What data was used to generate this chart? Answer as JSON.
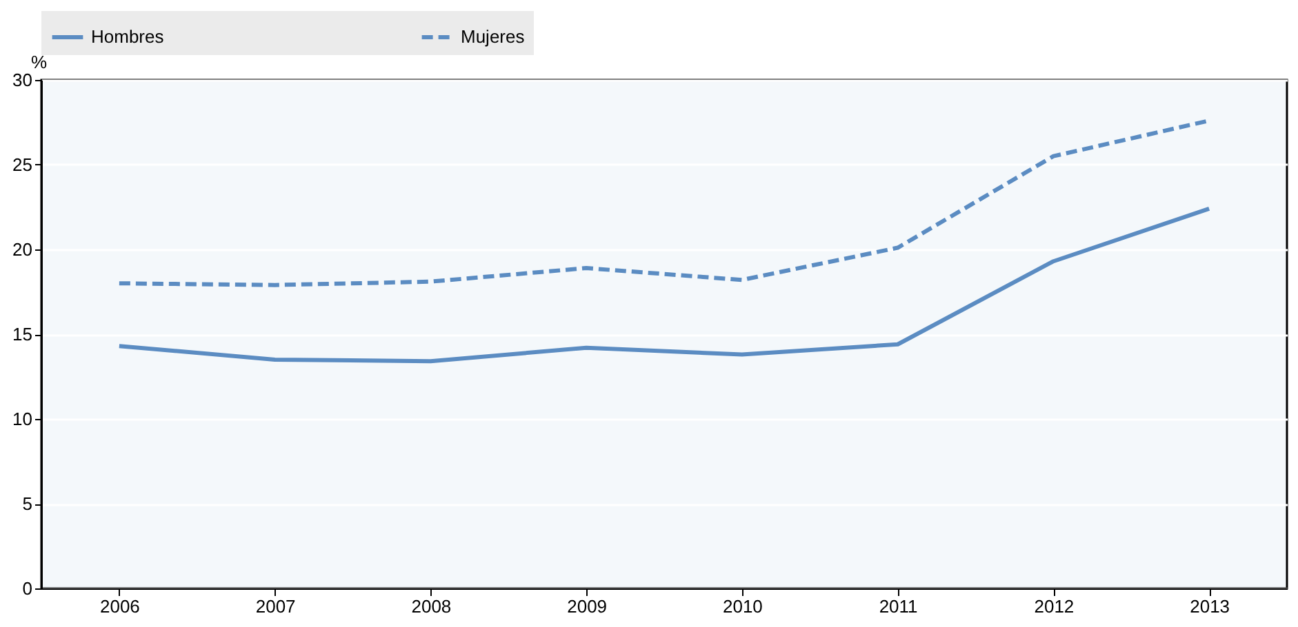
{
  "chart_data": {
    "type": "line",
    "ylabel": "%",
    "categories": [
      "2006",
      "2007",
      "2008",
      "2009",
      "2010",
      "2011",
      "2012",
      "2013"
    ],
    "series": [
      {
        "name": "Hombres",
        "color": "#5b8cc2",
        "line_style": "solid",
        "values": [
          14.3,
          13.5,
          13.4,
          14.2,
          13.8,
          14.4,
          19.3,
          22.4
        ]
      },
      {
        "name": "Mujeres",
        "color": "#5b8cc2",
        "line_style": "dashed",
        "values": [
          18.0,
          17.9,
          18.1,
          18.9,
          18.2,
          20.1,
          25.5,
          27.6
        ]
      }
    ],
    "ylim": [
      0,
      30
    ],
    "yticks": [
      0,
      5,
      10,
      15,
      20,
      25,
      30
    ],
    "grid": true,
    "legend": "top",
    "marker": "none"
  }
}
